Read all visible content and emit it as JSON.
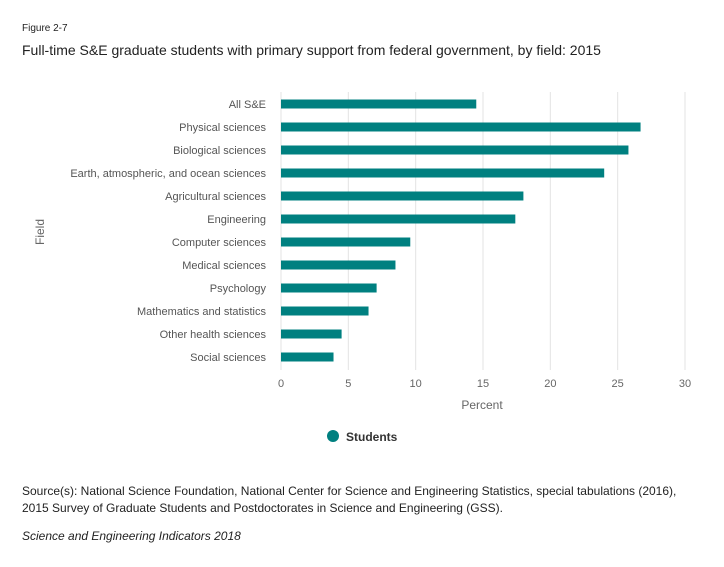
{
  "figure_label": "Figure 2-7",
  "source_line1": "Source(s): National Science Foundation, National Center for Science and Engineering Statistics, special tabulations (2016),",
  "source_line2": "2015 Survey of Graduate Students and Postdoctorates in Science and Engineering (GSS).",
  "credit": "Science and Engineering Indicators 2018",
  "chart_data": {
    "type": "bar",
    "orientation": "horizontal",
    "title": "Full-time S&E graduate students with primary support from federal government, by field: 2015",
    "xlabel": "Percent",
    "ylabel": "Field",
    "xlim": [
      0,
      30
    ],
    "xticks": [
      "0",
      "5",
      "10",
      "15",
      "20",
      "25",
      "30"
    ],
    "grid": true,
    "legend_position": "bottom",
    "color": "#008080",
    "categories": [
      "All S&E",
      "Physical sciences",
      "Biological sciences",
      "Earth, atmospheric, and ocean sciences",
      "Agricultural sciences",
      "Engineering",
      "Computer sciences",
      "Medical sciences",
      "Psychology",
      "Mathematics and statistics",
      "Other health sciences",
      "Social sciences"
    ],
    "series": [
      {
        "name": "Students",
        "values": [
          14.5,
          26.7,
          25.8,
          24.0,
          18.0,
          17.4,
          9.6,
          8.5,
          7.1,
          6.5,
          4.5,
          3.9
        ]
      }
    ]
  }
}
